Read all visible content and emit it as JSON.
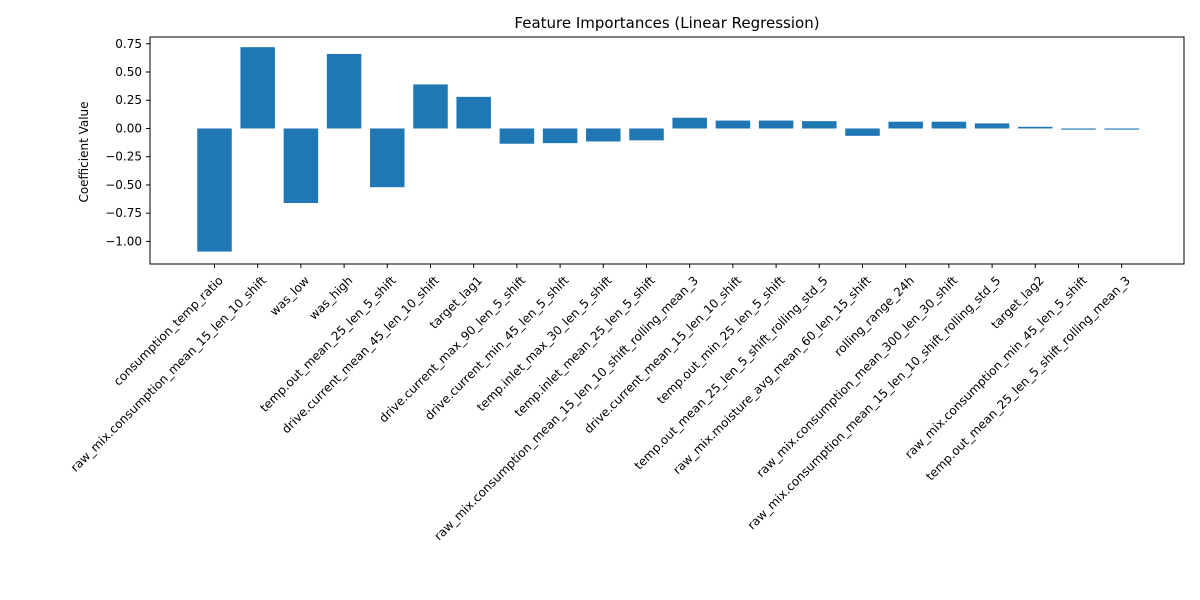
{
  "chart_data": {
    "type": "bar",
    "title": "Feature Importances (Linear Regression)",
    "xlabel": "",
    "ylabel": "Coefficient Value",
    "ylim": [
      -1.2,
      0.81
    ],
    "yticks": [
      -1.0,
      -0.75,
      -0.5,
      -0.25,
      0.0,
      0.25,
      0.5,
      0.75
    ],
    "ytick_labels": [
      "−1.00",
      "−0.75",
      "−0.50",
      "−0.25",
      "0.00",
      "0.25",
      "0.50",
      "0.75"
    ],
    "bar_color": "#1f77b4",
    "grid": false,
    "legend": "none",
    "categories": [
      "consumption_temp_ratio",
      "raw_mix.consumption_mean_15_len_10_shift",
      "was_low",
      "was_high",
      "temp.out_mean_25_len_5_shift",
      "drive.current_mean_45_len_10_shift",
      "target_lag1",
      "drive.current_max_90_len_5_shift",
      "drive.current_min_45_len_5_shift",
      "temp.inlet_max_30_len_5_shift",
      "temp.inlet_mean_25_len_5_shift",
      "raw_mix.consumption_mean_15_len_10_shift_rolling_mean_3",
      "drive.current_mean_15_len_10_shift",
      "temp.out_min_25_len_5_shift",
      "temp.out_mean_25_len_5_shift_rolling_std_5",
      "raw_mix.moisture_avg_mean_60_len_15_shift",
      "rolling_range_24h",
      "raw_mix.consumption_mean_300_len_30_shift",
      "raw_mix.consumption_mean_15_len_10_shift_rolling_std_5",
      "target_lag2",
      "raw_mix.consumption_min_45_len_5_shift",
      "temp.out_mean_25_len_5_shift_rolling_mean_3"
    ],
    "values": [
      -1.09,
      0.72,
      -0.66,
      0.66,
      -0.52,
      0.39,
      0.28,
      -0.135,
      -0.13,
      -0.115,
      -0.105,
      0.095,
      0.07,
      0.07,
      0.065,
      -0.065,
      0.06,
      0.06,
      0.045,
      0.015,
      -0.01,
      -0.01
    ]
  }
}
